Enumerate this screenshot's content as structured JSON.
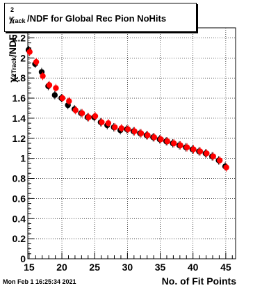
{
  "chart_data": {
    "type": "scatter",
    "title": "#chi^{2}_{Track}/NDF for Global Rec Pion NoHits",
    "title_parts": {
      "chi": "χ",
      "sup": "2",
      "sub": "Track",
      "rest": "/NDF for Global Rec Pion NoHits"
    },
    "xlabel": "No. of Fit Points",
    "ylabel_parts": {
      "chi": "χ",
      "sup": "2",
      "sub": "Track",
      "rest": "/NDF"
    },
    "xlim": [
      14.8,
      46.5
    ],
    "ylim": [
      0,
      2.3
    ],
    "xticks": [
      15,
      20,
      25,
      30,
      35,
      40,
      45
    ],
    "yticks": [
      0,
      0.2,
      0.4,
      0.6,
      0.8,
      1,
      1.2,
      1.4,
      1.6,
      1.8,
      2,
      2.2
    ],
    "ytick_labels": [
      "0",
      "0.2",
      "0.4",
      "0.6",
      "0.8",
      "1",
      "1.2",
      "1.4",
      "1.6",
      "1.8",
      "2",
      "2.2"
    ],
    "grid": true,
    "series": [
      {
        "color": "#000000",
        "x": [
          15,
          16,
          17,
          18,
          19,
          20,
          21,
          22,
          23,
          24,
          25,
          26,
          27,
          28,
          29,
          30,
          31,
          32,
          33,
          34,
          35,
          36,
          37,
          38,
          39,
          40,
          41,
          42,
          43,
          44,
          45
        ],
        "y": [
          2.08,
          1.94,
          1.86,
          1.72,
          1.63,
          1.6,
          1.53,
          1.49,
          1.45,
          1.41,
          1.41,
          1.36,
          1.33,
          1.31,
          1.28,
          1.29,
          1.27,
          1.25,
          1.23,
          1.21,
          1.19,
          1.17,
          1.15,
          1.13,
          1.11,
          1.09,
          1.07,
          1.05,
          1.02,
          0.98,
          0.92
        ]
      },
      {
        "color": "#ff0000",
        "x": [
          15,
          16,
          17,
          18,
          19,
          20,
          21,
          22,
          23,
          24,
          25,
          26,
          27,
          28,
          29,
          30,
          31,
          32,
          33,
          34,
          35,
          36,
          37,
          38,
          39,
          40,
          41,
          42,
          43,
          44,
          45
        ],
        "y": [
          2.06,
          1.96,
          1.82,
          1.73,
          1.7,
          1.6,
          1.57,
          1.48,
          1.45,
          1.41,
          1.42,
          1.36,
          1.35,
          1.31,
          1.3,
          1.29,
          1.27,
          1.25,
          1.23,
          1.21,
          1.19,
          1.17,
          1.15,
          1.13,
          1.11,
          1.09,
          1.07,
          1.05,
          1.02,
          0.98,
          0.91
        ]
      }
    ]
  },
  "footer": {
    "timestamp": "Mon Feb  1 16:25:34 2021"
  }
}
